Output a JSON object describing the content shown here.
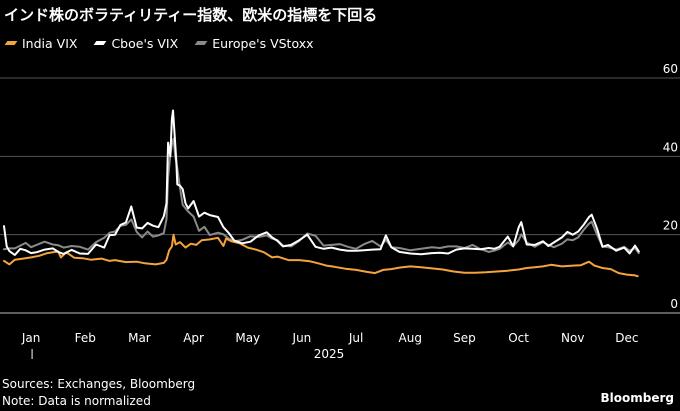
{
  "title": "インド株のボラティリティー指数、欧米の指標を下回る",
  "footer": {
    "sources": "Sources: Exchanges, Bloomberg",
    "note": "Note: Data is normalized",
    "brand": "Bloomberg"
  },
  "chart_data": {
    "type": "line",
    "title": "インド株のボラティリティー指数、欧米の指標を下回る",
    "xlabel": "",
    "ylabel": "",
    "year_label": "2025",
    "x_tick_labels": [
      "Jan",
      "Feb",
      "Mar",
      "Apr",
      "May",
      "Jun",
      "Jul",
      "Aug",
      "Sep",
      "Oct",
      "Nov",
      "Dec"
    ],
    "ylim": [
      0,
      60
    ],
    "y_ticks": [
      0,
      20,
      40,
      60
    ],
    "grid": true,
    "legend_position": "top-left",
    "x_units": "months since Jan 1, 2025",
    "series": [
      {
        "name": "India VIX",
        "color": "#f5a33b",
        "points": [
          [
            0.0,
            13.3
          ],
          [
            0.1,
            12.4
          ],
          [
            0.2,
            13.6
          ],
          [
            0.35,
            13.9
          ],
          [
            0.5,
            14.2
          ],
          [
            0.65,
            14.6
          ],
          [
            0.8,
            15.3
          ],
          [
            0.95,
            15.6
          ],
          [
            1.0,
            15.7
          ],
          [
            1.05,
            14.2
          ],
          [
            1.15,
            15.5
          ],
          [
            1.3,
            14.1
          ],
          [
            1.45,
            14.0
          ],
          [
            1.6,
            13.6
          ],
          [
            1.8,
            13.9
          ],
          [
            1.95,
            13.3
          ],
          [
            2.05,
            13.5
          ],
          [
            2.25,
            13.0
          ],
          [
            2.45,
            13.1
          ],
          [
            2.6,
            12.7
          ],
          [
            2.8,
            12.4
          ],
          [
            2.95,
            12.8
          ],
          [
            3.0,
            13.6
          ],
          [
            3.05,
            16.0
          ],
          [
            3.1,
            17.0
          ],
          [
            3.13,
            20.0
          ],
          [
            3.17,
            17.5
          ],
          [
            3.25,
            18.1
          ],
          [
            3.35,
            16.7
          ],
          [
            3.45,
            17.7
          ],
          [
            3.55,
            17.4
          ],
          [
            3.65,
            18.6
          ],
          [
            3.8,
            18.8
          ],
          [
            3.95,
            19.2
          ],
          [
            4.05,
            17.1
          ],
          [
            4.1,
            19.0
          ],
          [
            4.2,
            18.3
          ],
          [
            4.35,
            17.8
          ],
          [
            4.5,
            16.7
          ],
          [
            4.65,
            16.2
          ],
          [
            4.8,
            15.5
          ],
          [
            4.95,
            14.2
          ],
          [
            5.05,
            14.4
          ],
          [
            5.25,
            13.5
          ],
          [
            5.45,
            13.5
          ],
          [
            5.65,
            13.2
          ],
          [
            5.8,
            12.7
          ],
          [
            5.95,
            12.1
          ],
          [
            6.1,
            11.8
          ],
          [
            6.3,
            11.3
          ],
          [
            6.5,
            11.0
          ],
          [
            6.7,
            10.5
          ],
          [
            6.85,
            10.2
          ],
          [
            7.0,
            11.0
          ],
          [
            7.15,
            11.2
          ],
          [
            7.3,
            11.6
          ],
          [
            7.5,
            11.9
          ],
          [
            7.7,
            11.7
          ],
          [
            7.9,
            11.4
          ],
          [
            8.1,
            11.1
          ],
          [
            8.3,
            10.6
          ],
          [
            8.5,
            10.3
          ],
          [
            8.7,
            10.3
          ],
          [
            8.9,
            10.4
          ],
          [
            9.1,
            10.6
          ],
          [
            9.3,
            10.8
          ],
          [
            9.5,
            11.1
          ],
          [
            9.65,
            11.5
          ],
          [
            9.8,
            11.7
          ],
          [
            9.95,
            11.9
          ],
          [
            10.1,
            12.3
          ],
          [
            10.3,
            11.9
          ],
          [
            10.5,
            12.1
          ],
          [
            10.65,
            12.2
          ],
          [
            10.8,
            13.1
          ],
          [
            10.9,
            12.1
          ],
          [
            11.05,
            11.5
          ],
          [
            11.2,
            11.2
          ],
          [
            11.35,
            10.2
          ],
          [
            11.5,
            9.8
          ],
          [
            11.65,
            9.6
          ],
          [
            11.7,
            9.4
          ]
        ]
      },
      {
        "name": "Cboe's VIX",
        "color": "#ffffff",
        "points": [
          [
            0.0,
            22.2
          ],
          [
            0.05,
            17.0
          ],
          [
            0.1,
            15.8
          ],
          [
            0.2,
            14.8
          ],
          [
            0.3,
            16.4
          ],
          [
            0.4,
            16.0
          ],
          [
            0.5,
            15.3
          ],
          [
            0.6,
            15.5
          ],
          [
            0.75,
            16.2
          ],
          [
            0.9,
            16.5
          ],
          [
            1.0,
            15.6
          ],
          [
            1.1,
            15.1
          ],
          [
            1.25,
            16.1
          ],
          [
            1.4,
            15.2
          ],
          [
            1.55,
            15.1
          ],
          [
            1.7,
            17.5
          ],
          [
            1.85,
            16.7
          ],
          [
            1.95,
            19.9
          ],
          [
            2.05,
            20.0
          ],
          [
            2.15,
            22.5
          ],
          [
            2.25,
            23.1
          ],
          [
            2.35,
            27.2
          ],
          [
            2.45,
            21.8
          ],
          [
            2.55,
            21.6
          ],
          [
            2.65,
            23.0
          ],
          [
            2.75,
            22.3
          ],
          [
            2.85,
            21.9
          ],
          [
            2.95,
            24.7
          ],
          [
            3.0,
            28.0
          ],
          [
            3.03,
            43.5
          ],
          [
            3.07,
            40.0
          ],
          [
            3.1,
            49.5
          ],
          [
            3.12,
            51.7
          ],
          [
            3.15,
            45.6
          ],
          [
            3.18,
            38.8
          ],
          [
            3.2,
            32.8
          ],
          [
            3.25,
            32.5
          ],
          [
            3.3,
            31.6
          ],
          [
            3.35,
            28.0
          ],
          [
            3.4,
            26.7
          ],
          [
            3.5,
            28.6
          ],
          [
            3.6,
            24.6
          ],
          [
            3.7,
            25.6
          ],
          [
            3.8,
            25.0
          ],
          [
            3.95,
            24.5
          ],
          [
            4.05,
            21.9
          ],
          [
            4.15,
            20.4
          ],
          [
            4.25,
            18.5
          ],
          [
            4.4,
            17.8
          ],
          [
            4.55,
            18.2
          ],
          [
            4.7,
            19.8
          ],
          [
            4.85,
            20.6
          ],
          [
            4.95,
            19.3
          ],
          [
            5.05,
            18.4
          ],
          [
            5.15,
            17.0
          ],
          [
            5.3,
            17.4
          ],
          [
            5.45,
            18.6
          ],
          [
            5.6,
            20.0
          ],
          [
            5.75,
            16.9
          ],
          [
            5.9,
            16.4
          ],
          [
            6.05,
            16.7
          ],
          [
            6.2,
            16.2
          ],
          [
            6.35,
            15.9
          ],
          [
            6.5,
            15.9
          ],
          [
            6.65,
            16.0
          ],
          [
            6.8,
            16.2
          ],
          [
            6.95,
            16.3
          ],
          [
            7.05,
            19.8
          ],
          [
            7.15,
            16.8
          ],
          [
            7.3,
            15.6
          ],
          [
            7.5,
            15.2
          ],
          [
            7.7,
            15.0
          ],
          [
            7.9,
            15.3
          ],
          [
            8.05,
            15.4
          ],
          [
            8.2,
            15.2
          ],
          [
            8.35,
            16.2
          ],
          [
            8.5,
            16.5
          ],
          [
            8.65,
            16.4
          ],
          [
            8.8,
            16.3
          ],
          [
            8.95,
            16.6
          ],
          [
            9.05,
            16.4
          ],
          [
            9.15,
            16.9
          ],
          [
            9.3,
            19.5
          ],
          [
            9.4,
            17.0
          ],
          [
            9.5,
            21.8
          ],
          [
            9.55,
            23.2
          ],
          [
            9.65,
            17.5
          ],
          [
            9.8,
            17.4
          ],
          [
            9.95,
            18.3
          ],
          [
            10.05,
            17.1
          ],
          [
            10.15,
            18.0
          ],
          [
            10.3,
            19.3
          ],
          [
            10.4,
            20.7
          ],
          [
            10.5,
            20.0
          ],
          [
            10.6,
            20.8
          ],
          [
            10.7,
            22.5
          ],
          [
            10.8,
            24.5
          ],
          [
            10.85,
            25.1
          ],
          [
            10.95,
            21.5
          ],
          [
            11.05,
            16.9
          ],
          [
            11.15,
            17.4
          ],
          [
            11.3,
            15.9
          ],
          [
            11.45,
            16.7
          ],
          [
            11.55,
            15.2
          ],
          [
            11.65,
            17.2
          ],
          [
            11.72,
            15.7
          ]
        ]
      },
      {
        "name": "Europe's VStoxx",
        "color": "#8a8a8a",
        "points": [
          [
            0.0,
            16.3
          ],
          [
            0.1,
            16.5
          ],
          [
            0.2,
            16.5
          ],
          [
            0.3,
            17.2
          ],
          [
            0.4,
            17.9
          ],
          [
            0.5,
            16.8
          ],
          [
            0.6,
            17.4
          ],
          [
            0.75,
            18.2
          ],
          [
            0.9,
            17.5
          ],
          [
            1.0,
            17.3
          ],
          [
            1.1,
            16.7
          ],
          [
            1.25,
            17.1
          ],
          [
            1.4,
            16.9
          ],
          [
            1.55,
            16.2
          ],
          [
            1.7,
            18.1
          ],
          [
            1.85,
            19.2
          ],
          [
            1.95,
            20.5
          ],
          [
            2.05,
            20.8
          ],
          [
            2.15,
            22.3
          ],
          [
            2.25,
            22.5
          ],
          [
            2.35,
            23.9
          ],
          [
            2.45,
            20.7
          ],
          [
            2.55,
            19.3
          ],
          [
            2.65,
            20.8
          ],
          [
            2.75,
            19.5
          ],
          [
            2.85,
            19.8
          ],
          [
            2.95,
            20.4
          ],
          [
            3.0,
            24.0
          ],
          [
            3.03,
            34.5
          ],
          [
            3.07,
            40.3
          ],
          [
            3.1,
            43.0
          ],
          [
            3.13,
            44.5
          ],
          [
            3.16,
            40.1
          ],
          [
            3.2,
            37.0
          ],
          [
            3.25,
            32.0
          ],
          [
            3.3,
            27.6
          ],
          [
            3.4,
            25.9
          ],
          [
            3.5,
            24.6
          ],
          [
            3.6,
            21.0
          ],
          [
            3.7,
            22.0
          ],
          [
            3.8,
            19.9
          ],
          [
            3.95,
            20.5
          ],
          [
            4.05,
            20.1
          ],
          [
            4.15,
            19.0
          ],
          [
            4.25,
            18.3
          ],
          [
            4.4,
            18.7
          ],
          [
            4.55,
            19.6
          ],
          [
            4.7,
            19.4
          ],
          [
            4.85,
            19.8
          ],
          [
            4.95,
            19.0
          ],
          [
            5.05,
            18.6
          ],
          [
            5.15,
            17.2
          ],
          [
            5.3,
            17.0
          ],
          [
            5.45,
            18.4
          ],
          [
            5.6,
            20.3
          ],
          [
            5.75,
            19.7
          ],
          [
            5.9,
            17.2
          ],
          [
            6.05,
            17.4
          ],
          [
            6.2,
            17.6
          ],
          [
            6.35,
            16.9
          ],
          [
            6.5,
            16.4
          ],
          [
            6.65,
            17.6
          ],
          [
            6.8,
            18.4
          ],
          [
            6.95,
            17.0
          ],
          [
            7.05,
            18.7
          ],
          [
            7.15,
            16.8
          ],
          [
            7.3,
            16.6
          ],
          [
            7.5,
            16.0
          ],
          [
            7.7,
            16.4
          ],
          [
            7.9,
            16.8
          ],
          [
            8.05,
            16.6
          ],
          [
            8.2,
            17.0
          ],
          [
            8.35,
            17.0
          ],
          [
            8.5,
            16.6
          ],
          [
            8.65,
            17.4
          ],
          [
            8.8,
            16.3
          ],
          [
            8.95,
            15.6
          ],
          [
            9.05,
            15.9
          ],
          [
            9.15,
            16.4
          ],
          [
            9.3,
            18.0
          ],
          [
            9.4,
            17.0
          ],
          [
            9.5,
            18.6
          ],
          [
            9.55,
            20.1
          ],
          [
            9.65,
            18.0
          ],
          [
            9.8,
            16.9
          ],
          [
            9.95,
            18.1
          ],
          [
            10.05,
            17.4
          ],
          [
            10.15,
            16.8
          ],
          [
            10.3,
            17.7
          ],
          [
            10.4,
            18.8
          ],
          [
            10.5,
            18.6
          ],
          [
            10.6,
            19.3
          ],
          [
            10.7,
            21.2
          ],
          [
            10.8,
            22.8
          ],
          [
            10.85,
            23.3
          ],
          [
            10.95,
            20.0
          ],
          [
            11.05,
            17.0
          ],
          [
            11.15,
            16.8
          ],
          [
            11.3,
            16.2
          ],
          [
            11.45,
            16.9
          ],
          [
            11.55,
            15.9
          ],
          [
            11.65,
            16.6
          ],
          [
            11.72,
            15.3
          ]
        ]
      }
    ]
  }
}
